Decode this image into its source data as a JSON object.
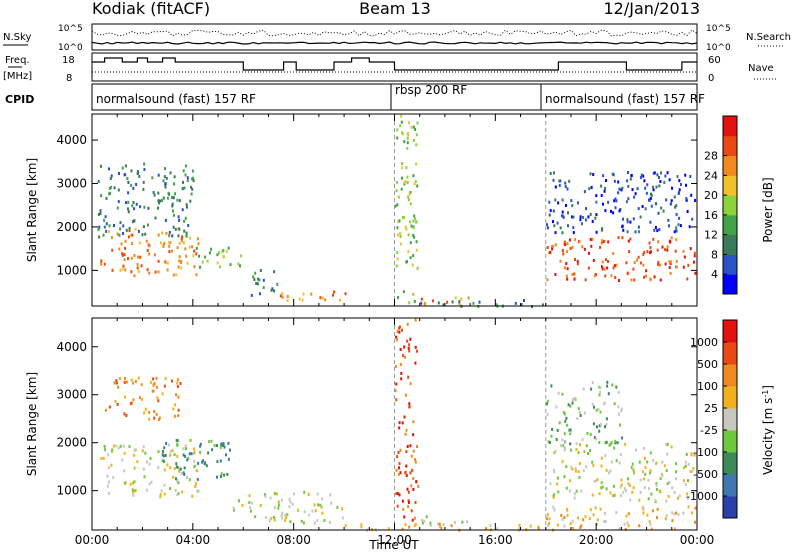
{
  "header": {
    "title_left": "Kodiak (fitACF)",
    "title_center": "Beam 13",
    "title_right": "12/Jan/2013"
  },
  "top_panel": {
    "label_left": "N.Sky",
    "label_right": "N.Search",
    "tick_high_left": "10^5",
    "tick_low_left": "10^0",
    "tick_high_right": "10^5",
    "tick_low_right": "10^0"
  },
  "freq_panel": {
    "label_left_1": "Freq.",
    "label_left_2": "[MHz]",
    "label_right": "Nave",
    "tick_high_left": "18",
    "tick_low_left": "8",
    "tick_high_right": "60",
    "tick_low_right": "0"
  },
  "cpid_panel": {
    "label": "CPID",
    "segments": [
      {
        "text": "normalsound (fast) 157 RF",
        "start_hour": 0
      },
      {
        "text": "rbsp 200 RF",
        "start_hour": 12
      },
      {
        "text": "normalsound (fast) 157 RF",
        "start_hour": 18
      }
    ]
  },
  "chart_data": [
    {
      "type": "heatmap",
      "name": "Power",
      "ylabel": "Slant Range [km]",
      "ylim": [
        180,
        4600
      ],
      "yticks": [
        "1000",
        "2000",
        "3000",
        "4000"
      ],
      "xlim": [
        0,
        24
      ],
      "colorbar": {
        "label": "Power [dB]",
        "ticks": [
          "4",
          "8",
          "12",
          "16",
          "20",
          "24",
          "28"
        ],
        "colors": [
          "#0000ff",
          "#2b53c8",
          "#3a7a5a",
          "#41a24a",
          "#8bd23b",
          "#f2c02c",
          "#f08a1e",
          "#ea4a12",
          "#e3120f"
        ]
      },
      "regions": [
        {
          "t0": 0.3,
          "t1": 4.2,
          "r0": 900,
          "r1": 2000,
          "level": 6
        },
        {
          "t0": 0.2,
          "t1": 4.0,
          "r0": 1800,
          "r1": 3500,
          "level": 2
        },
        {
          "t0": 4.0,
          "t1": 6.0,
          "r0": 1100,
          "r1": 1600,
          "level": 4
        },
        {
          "t0": 6.3,
          "t1": 7.5,
          "r0": 450,
          "r1": 1100,
          "level": 2
        },
        {
          "t0": 7.4,
          "t1": 10.2,
          "r0": 300,
          "r1": 550,
          "level": 6
        },
        {
          "t0": 12.0,
          "t1": 12.9,
          "r0": 250,
          "r1": 4600,
          "level": 4
        },
        {
          "t0": 13.0,
          "t1": 15.0,
          "r0": 250,
          "r1": 450,
          "level": 6
        },
        {
          "t0": 13.0,
          "t1": 18.0,
          "r0": 200,
          "r1": 350,
          "level": 2
        },
        {
          "t0": 18.0,
          "t1": 23.9,
          "r0": 800,
          "r1": 1800,
          "level": 7
        },
        {
          "t0": 18.0,
          "t1": 23.9,
          "r0": 1900,
          "r1": 3300,
          "level": 1
        }
      ]
    },
    {
      "type": "heatmap",
      "name": "Velocity",
      "ylabel": "Slant Range [km]",
      "xlabel": "Time UT",
      "xticks": [
        "00:00",
        "04:00",
        "08:00",
        "12:00",
        "16:00",
        "20:00",
        "00:00"
      ],
      "ylim": [
        180,
        4600
      ],
      "yticks": [
        "1000",
        "2000",
        "3000",
        "4000"
      ],
      "xlim": [
        0,
        24
      ],
      "colorbar": {
        "label": "Velocity [m s",
        "label_sup": "-1",
        "label_end": "]",
        "ticks": [
          "1000",
          "500",
          "100",
          "25",
          "-25",
          "-100",
          "-500",
          "-1000"
        ],
        "colors": [
          "#2d3fa8",
          "#3f78b0",
          "#3c8a5a",
          "#6ec83e",
          "#c8c8c0",
          "#f1b11e",
          "#f08a1e",
          "#ea4a12",
          "#e3120f"
        ]
      },
      "regions": [
        {
          "t0": 0.3,
          "t1": 4.2,
          "r0": 900,
          "r1": 2000,
          "level": 4
        },
        {
          "t0": 2.5,
          "t1": 5.5,
          "r0": 1200,
          "r1": 2100,
          "level": 2
        },
        {
          "t0": 0.5,
          "t1": 3.5,
          "r0": 2500,
          "r1": 3400,
          "level": 6
        },
        {
          "t0": 5.5,
          "t1": 10.0,
          "r0": 350,
          "r1": 1000,
          "level": 4
        },
        {
          "t0": 12.0,
          "t1": 12.9,
          "r0": 250,
          "r1": 4600,
          "level": 7
        },
        {
          "t0": 13.0,
          "t1": 15.0,
          "r0": 250,
          "r1": 500,
          "level": 3
        },
        {
          "t0": 10.0,
          "t1": 18.0,
          "r0": 200,
          "r1": 350,
          "level": 5
        },
        {
          "t0": 18.0,
          "t1": 23.9,
          "r0": 800,
          "r1": 2000,
          "level": 4
        },
        {
          "t0": 18.0,
          "t1": 21.0,
          "r0": 2000,
          "r1": 3300,
          "level": 3
        },
        {
          "t0": 18.0,
          "t1": 23.9,
          "r0": 200,
          "r1": 700,
          "level": 5
        }
      ]
    }
  ]
}
